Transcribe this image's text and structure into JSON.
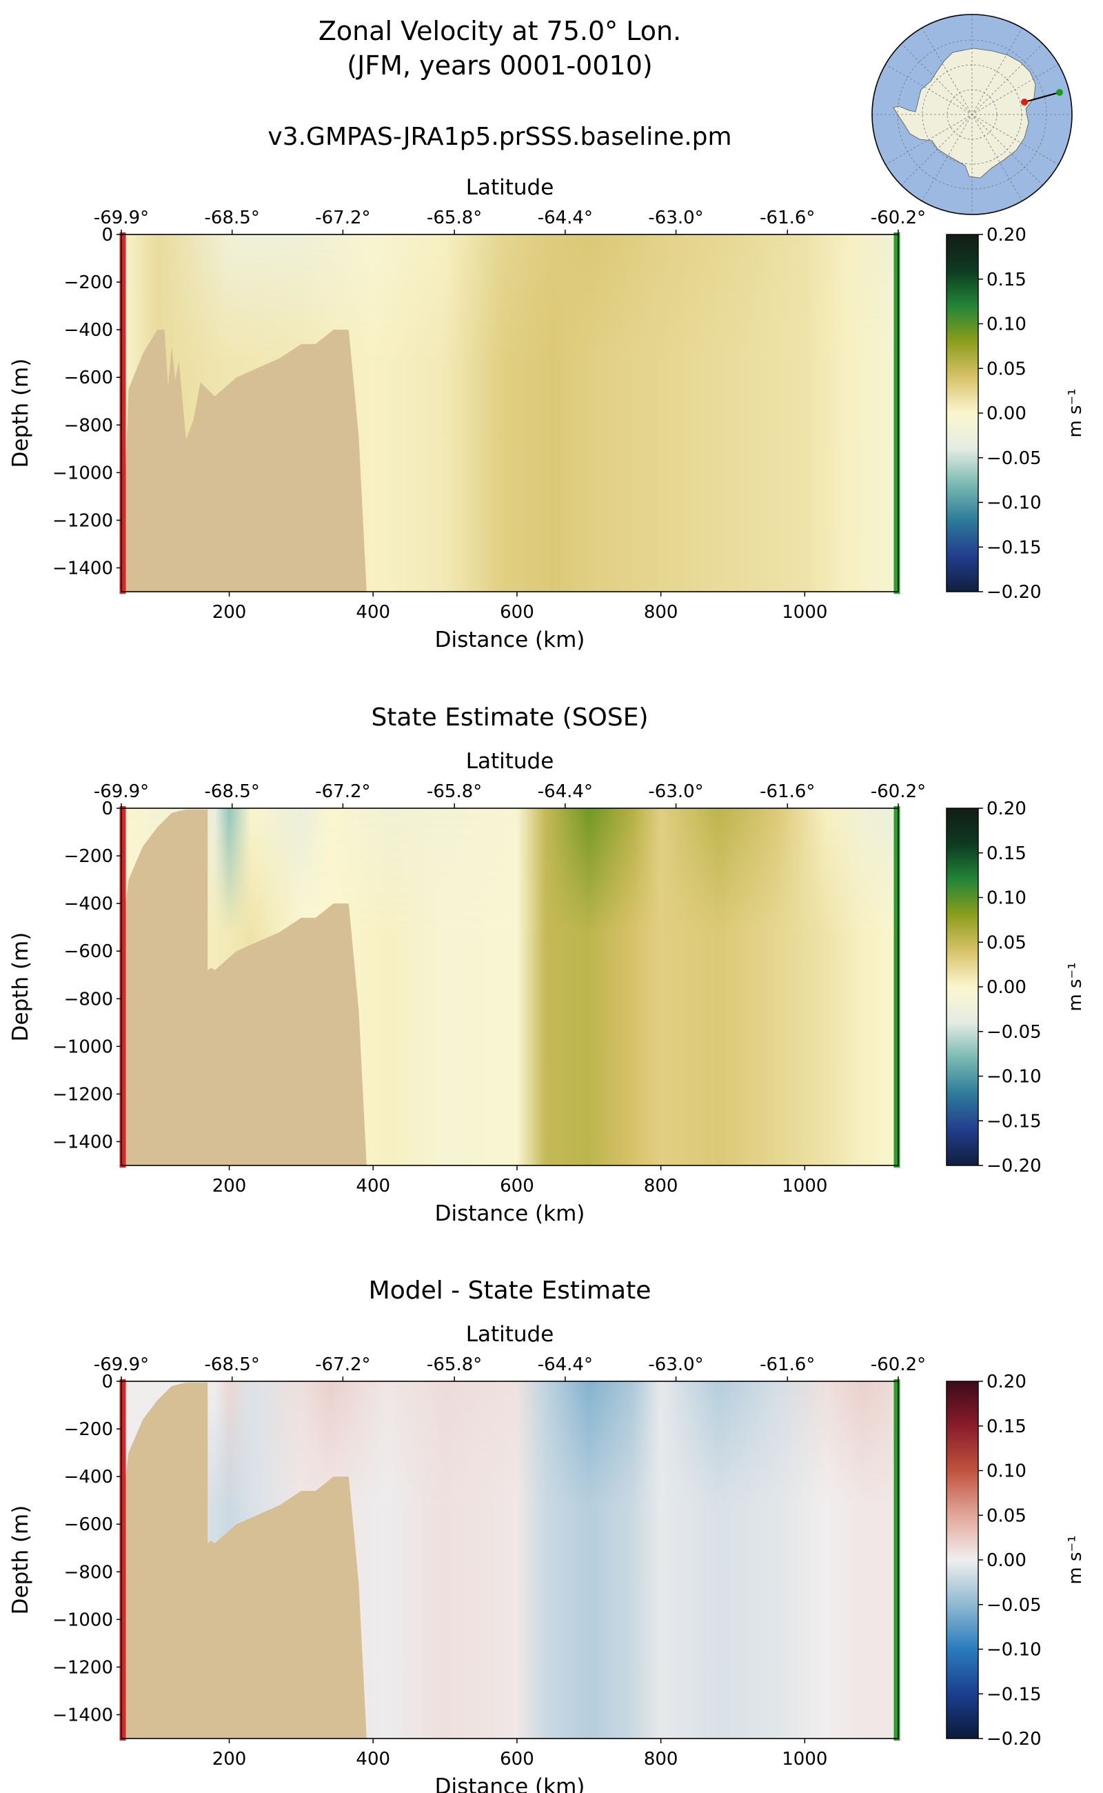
{
  "figure": {
    "title_line1": "Zonal Velocity at 75.0° Lon.",
    "title_line2": "(JFM, years 0001-0010)",
    "inset_map": "antarctic-polar-map-with-transect"
  },
  "colors": {
    "land": "#d6bf95",
    "model_marker": "#d62728",
    "end_marker": "#2ca02c",
    "ocean_map": "#9cb9e2",
    "land_map": "#efefdc",
    "balance_cmap": [
      "#0b1a3b",
      "#1b3e8f",
      "#2a7bbd",
      "#8fb9d1",
      "#f1eeee",
      "#e2a699",
      "#c0533f",
      "#8a1c2a",
      "#3c0b19"
    ],
    "delta_cmap": [
      "#0f1f3e",
      "#233d8e",
      "#2d7a9a",
      "#79b9b2",
      "#e4ece3",
      "#fbf6cf",
      "#d8c26a",
      "#8d9e1c",
      "#238537",
      "#0d3a20",
      "#131c14"
    ]
  },
  "chart_data": [
    {
      "type": "heatmap",
      "panel": "model",
      "title": "v3.GMPAS-JRA1p5.prSSS.baseline.pm",
      "xlabel": "Distance (km)",
      "ylabel": "Depth (m)",
      "top_xlabel": "Latitude",
      "xlim": [
        50,
        1130
      ],
      "ylim": [
        -1500,
        0
      ],
      "xticks": [
        200,
        400,
        600,
        800,
        1000
      ],
      "xtick_labels": [
        "200",
        "400",
        "600",
        "800",
        "1000"
      ],
      "yticks": [
        0,
        -200,
        -400,
        -600,
        -800,
        -1000,
        -1200,
        -1400
      ],
      "ytick_labels": [
        "0",
        "−200",
        "−400",
        "−600",
        "−800",
        "−1000",
        "−1200",
        "−1400"
      ],
      "top_tick_labels": [
        "-69.9°",
        "-68.5°",
        "-67.2°",
        "-65.8°",
        "-64.4°",
        "-63.0°",
        "-61.6°",
        "-60.2°"
      ],
      "top_tick_positions_km": [
        50,
        204,
        358,
        513,
        667,
        821,
        976,
        1130
      ],
      "colorbar": {
        "cmap": "delta",
        "label": "m s⁻¹",
        "range": [
          -0.2,
          0.2
        ],
        "tick_labels": [
          "0.20",
          "0.15",
          "0.10",
          "0.05",
          "0.00",
          "−0.05",
          "−0.10",
          "−0.15",
          "−0.20"
        ]
      },
      "velocity_columns_ms": {
        "distance_km": [
          50,
          100,
          200,
          300,
          400,
          500,
          580,
          650,
          700,
          800,
          900,
          1000,
          1060,
          1130
        ],
        "surface": [
          -0.005,
          0.02,
          -0.02,
          -0.02,
          -0.005,
          0.005,
          0.025,
          0.032,
          0.035,
          0.028,
          0.022,
          0.015,
          0.005,
          -0.02
        ],
        "deep": [
          -0.005,
          0.02,
          0.012,
          0.01,
          0.004,
          0.01,
          0.03,
          0.035,
          0.03,
          0.025,
          0.02,
          0.015,
          0.005,
          -0.01
        ]
      },
      "bathymetry_depth_m": {
        "distance_km": [
          50,
          60,
          80,
          100,
          110,
          115,
          120,
          125,
          130,
          140,
          150,
          160,
          170,
          180,
          210,
          240,
          270,
          300,
          320,
          345,
          366,
          380,
          380,
          391
        ],
        "depth_m": [
          -1500,
          -650,
          -500,
          -400,
          -400,
          -640,
          -470,
          -610,
          -530,
          -860,
          -780,
          -620,
          -650,
          -680,
          -600,
          -560,
          -520,
          -460,
          -460,
          -400,
          -400,
          -850,
          -850,
          -1500
        ]
      }
    },
    {
      "type": "heatmap",
      "panel": "sose",
      "title": "State Estimate (SOSE)",
      "xlabel": "Distance (km)",
      "ylabel": "Depth (m)",
      "top_xlabel": "Latitude",
      "xlim": [
        50,
        1130
      ],
      "ylim": [
        -1500,
        0
      ],
      "xticks": [
        200,
        400,
        600,
        800,
        1000
      ],
      "xtick_labels": [
        "200",
        "400",
        "600",
        "800",
        "1000"
      ],
      "yticks": [
        0,
        -200,
        -400,
        -600,
        -800,
        -1000,
        -1200,
        -1400
      ],
      "ytick_labels": [
        "0",
        "−200",
        "−400",
        "−600",
        "−800",
        "−1000",
        "−1200",
        "−1400"
      ],
      "top_tick_labels": [
        "-69.9°",
        "-68.5°",
        "-67.2°",
        "-65.8°",
        "-64.4°",
        "-63.0°",
        "-61.6°",
        "-60.2°"
      ],
      "top_tick_positions_km": [
        50,
        204,
        358,
        513,
        667,
        821,
        976,
        1130
      ],
      "colorbar": {
        "cmap": "delta",
        "label": "m s⁻¹",
        "range": [
          -0.2,
          0.2
        ],
        "tick_labels": [
          "0.20",
          "0.15",
          "0.10",
          "0.05",
          "0.00",
          "−0.05",
          "−0.10",
          "−0.15",
          "−0.20"
        ]
      },
      "velocity_columns_ms": {
        "distance_km": [
          50,
          180,
          200,
          230,
          300,
          340,
          420,
          500,
          600,
          640,
          700,
          760,
          800,
          880,
          960,
          1030,
          1080,
          1130
        ],
        "surface": [
          0.0,
          -0.03,
          -0.07,
          0.0,
          -0.03,
          0.0,
          -0.015,
          -0.012,
          -0.005,
          0.05,
          0.09,
          0.06,
          0.03,
          0.055,
          0.035,
          0.005,
          -0.015,
          -0.03
        ],
        "deep": [
          0.0,
          0.008,
          0.01,
          0.015,
          0.0,
          0.0,
          0.005,
          -0.008,
          -0.004,
          0.05,
          0.055,
          0.04,
          0.03,
          0.035,
          0.025,
          0.015,
          0.005,
          0.0
        ]
      },
      "bathymetry_depth_m": {
        "distance_km": [
          50,
          52,
          60,
          80,
          100,
          120,
          140,
          170,
          170,
          175,
          180,
          210,
          240,
          270,
          300,
          320,
          345,
          366,
          380,
          380,
          391
        ],
        "depth_m": [
          -1500,
          -500,
          -300,
          -160,
          -80,
          -20,
          -5,
          -5,
          -680,
          -670,
          -680,
          -600,
          -560,
          -520,
          -460,
          -460,
          -400,
          -400,
          -850,
          -850,
          -1500
        ]
      }
    },
    {
      "type": "heatmap",
      "panel": "difference",
      "title": "Model - State Estimate",
      "xlabel": "Distance (km)",
      "ylabel": "Depth (m)",
      "top_xlabel": "Latitude",
      "xlim": [
        50,
        1130
      ],
      "ylim": [
        -1500,
        0
      ],
      "xticks": [
        200,
        400,
        600,
        800,
        1000
      ],
      "xtick_labels": [
        "200",
        "400",
        "600",
        "800",
        "1000"
      ],
      "yticks": [
        0,
        -200,
        -400,
        -600,
        -800,
        -1000,
        -1200,
        -1400
      ],
      "ytick_labels": [
        "0",
        "−200",
        "−400",
        "−600",
        "−800",
        "−1000",
        "−1200",
        "−1400"
      ],
      "top_tick_labels": [
        "-69.9°",
        "-68.5°",
        "-67.2°",
        "-65.8°",
        "-64.4°",
        "-63.0°",
        "-61.6°",
        "-60.2°"
      ],
      "top_tick_positions_km": [
        50,
        204,
        358,
        513,
        667,
        821,
        976,
        1130
      ],
      "colorbar": {
        "cmap": "balance",
        "label": "m s⁻¹",
        "range": [
          -0.2,
          0.2
        ],
        "tick_labels": [
          "0.20",
          "0.15",
          "0.10",
          "0.05",
          "0.00",
          "−0.05",
          "−0.10",
          "−0.15",
          "−0.20"
        ]
      },
      "velocity_columns_ms": {
        "distance_km": [
          50,
          180,
          200,
          230,
          300,
          340,
          420,
          500,
          600,
          640,
          700,
          760,
          800,
          880,
          960,
          1030,
          1080,
          1130
        ],
        "surface": [
          0.0,
          0.0,
          0.015,
          -0.01,
          0.01,
          0.02,
          0.005,
          0.012,
          0.008,
          -0.025,
          -0.055,
          -0.035,
          -0.005,
          -0.03,
          -0.015,
          0.01,
          0.02,
          0.012
        ],
        "deep": [
          0.0,
          -0.015,
          -0.02,
          -0.012,
          0.005,
          0.005,
          -0.002,
          0.01,
          0.005,
          -0.02,
          -0.03,
          -0.02,
          -0.005,
          -0.012,
          -0.008,
          0.0,
          0.005,
          0.005
        ]
      },
      "bathymetry_depth_m": {
        "distance_km": [
          50,
          52,
          60,
          80,
          100,
          120,
          140,
          170,
          170,
          175,
          180,
          210,
          240,
          270,
          300,
          320,
          345,
          366,
          380,
          380,
          391
        ],
        "depth_m": [
          -1500,
          -500,
          -300,
          -160,
          -80,
          -20,
          -5,
          -5,
          -680,
          -670,
          -680,
          -600,
          -560,
          -520,
          -460,
          -460,
          -400,
          -400,
          -850,
          -850,
          -1500
        ]
      }
    }
  ]
}
